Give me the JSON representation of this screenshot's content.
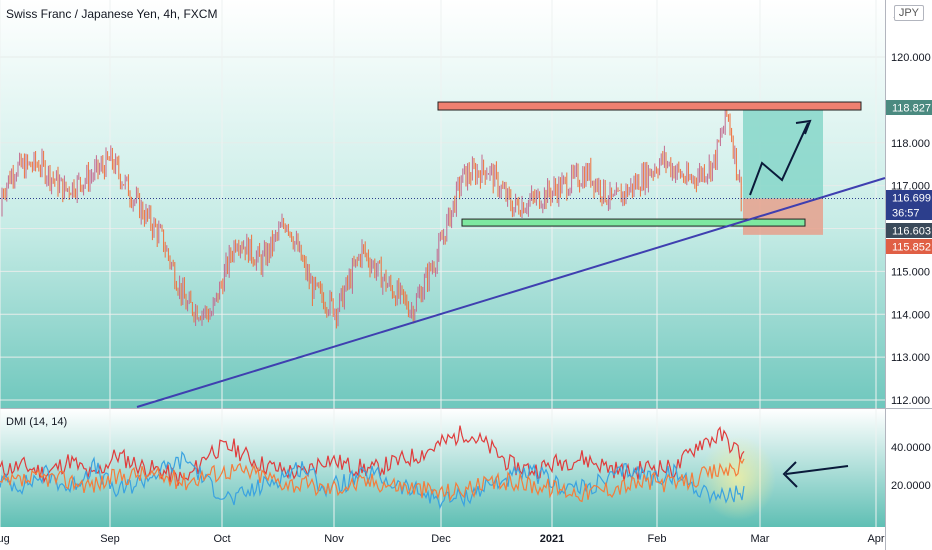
{
  "header": {
    "title": "Swiss Franc / Japanese Yen, 4h, FXCM",
    "currency_label": "JPY",
    "currency_prefix": "1"
  },
  "indicator": {
    "label": "DMI (14, 14)"
  },
  "colors": {
    "background_top": "#ffffff",
    "background_bottom": "#6fc7bd",
    "candle_up": "#c26a8f",
    "candle_down": "#f06f3a",
    "trendline": "#3f3fb0",
    "resistance_fill": "#f08070",
    "support_fill": "#7ee8a0",
    "target_zone": "#86d6c9",
    "stop_zone": "#e6a08c",
    "di_plus": "#e03b3b",
    "di_minus": "#3aa2e0",
    "adx": "#f57c3a"
  },
  "chart_data": [
    {
      "type": "candlestick",
      "title": "Swiss Franc / Japanese Yen, 4h, FXCM",
      "x_tick_labels": [
        "Aug",
        "Sep",
        "Oct",
        "Nov",
        "Dec",
        "2021",
        "Feb",
        "Mar",
        "Apr"
      ],
      "y_tick_labels": [
        "112.000",
        "113.000",
        "114.000",
        "115.000",
        "116.000",
        "117.000",
        "118.000",
        "120.000"
      ],
      "ylim": [
        111.97,
        121.0
      ],
      "price_tags": [
        {
          "label": "118.827",
          "value": 118.827,
          "color": "#4b8a80"
        },
        {
          "label": "116.699",
          "value": 116.699,
          "color": "#2c3e8c"
        },
        {
          "label": "36:57",
          "value": 116.38,
          "color": "#2c3e8c"
        },
        {
          "label": "116.603",
          "value": 116.603,
          "color": "#3a4a5a"
        },
        {
          "label": "115.852",
          "value": 115.852,
          "color": "#e05f45"
        }
      ],
      "approx_closes": [
        {
          "date": "2020-07-29",
          "close": 116.3
        },
        {
          "date": "2020-08-05",
          "close": 117.4
        },
        {
          "date": "2020-08-12",
          "close": 117.5
        },
        {
          "date": "2020-08-19",
          "close": 116.9
        },
        {
          "date": "2020-08-26",
          "close": 117.2
        },
        {
          "date": "2020-09-01",
          "close": 117.6
        },
        {
          "date": "2020-09-08",
          "close": 116.6
        },
        {
          "date": "2020-09-15",
          "close": 115.8
        },
        {
          "date": "2020-09-22",
          "close": 114.2
        },
        {
          "date": "2020-09-29",
          "close": 114.0
        },
        {
          "date": "2020-10-06",
          "close": 115.8
        },
        {
          "date": "2020-10-13",
          "close": 115.2
        },
        {
          "date": "2020-10-20",
          "close": 116.2
        },
        {
          "date": "2020-10-27",
          "close": 114.6
        },
        {
          "date": "2020-11-03",
          "close": 114.1
        },
        {
          "date": "2020-11-10",
          "close": 115.5
        },
        {
          "date": "2020-11-17",
          "close": 114.7
        },
        {
          "date": "2020-11-24",
          "close": 114.1
        },
        {
          "date": "2020-12-01",
          "close": 115.4
        },
        {
          "date": "2020-12-08",
          "close": 117.2
        },
        {
          "date": "2020-12-15",
          "close": 117.4
        },
        {
          "date": "2020-12-22",
          "close": 116.5
        },
        {
          "date": "2020-12-29",
          "close": 116.7
        },
        {
          "date": "2021-01-05",
          "close": 117.0
        },
        {
          "date": "2021-01-12",
          "close": 117.3
        },
        {
          "date": "2021-01-19",
          "close": 116.6
        },
        {
          "date": "2021-01-26",
          "close": 117.1
        },
        {
          "date": "2021-02-02",
          "close": 117.6
        },
        {
          "date": "2021-02-09",
          "close": 117.1
        },
        {
          "date": "2021-02-16",
          "close": 117.5
        },
        {
          "date": "2021-02-20",
          "close": 118.7
        },
        {
          "date": "2021-02-24",
          "close": 116.7
        }
      ]
    },
    {
      "type": "line",
      "title": "DMI (14, 14)",
      "y_tick_labels": [
        "40.0000",
        "20.0000"
      ],
      "ylim": [
        5,
        55
      ],
      "series": [
        {
          "values": [
            28,
            30,
            26,
            33,
            24,
            36,
            30,
            27,
            22,
            38,
            40,
            32,
            28,
            26,
            34,
            30,
            28,
            32,
            36,
            42,
            48,
            40,
            30,
            28,
            32,
            34,
            30,
            26,
            30,
            28,
            42,
            46,
            34
          ]
        },
        {
          "values": [
            22,
            20,
            26,
            18,
            30,
            16,
            22,
            28,
            34,
            20,
            12,
            18,
            24,
            30,
            18,
            22,
            26,
            20,
            16,
            12,
            14,
            20,
            24,
            26,
            20,
            18,
            22,
            28,
            24,
            26,
            18,
            14,
            16
          ]
        },
        {
          "values": [
            20,
            22,
            24,
            22,
            20,
            24,
            26,
            24,
            22,
            26,
            28,
            26,
            22,
            20,
            18,
            20,
            22,
            20,
            18,
            16,
            18,
            20,
            22,
            20,
            18,
            16,
            18,
            20,
            22,
            20,
            24,
            28,
            30
          ]
        }
      ]
    }
  ]
}
